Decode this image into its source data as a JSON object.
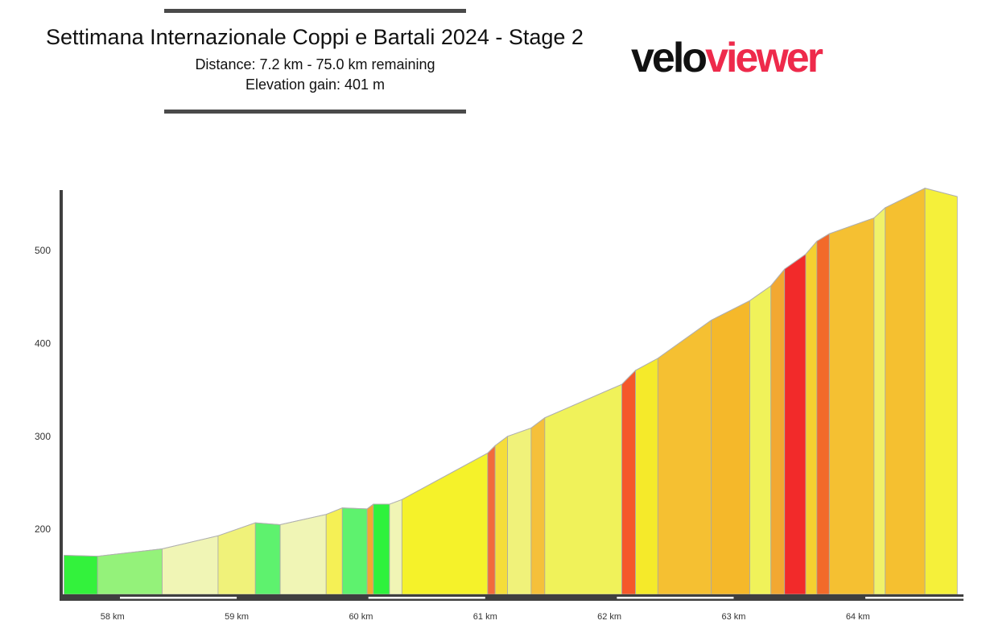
{
  "header": {
    "title": "Settimana Internazionale Coppi e Bartali 2024 - Stage 2",
    "distance_line": "Distance: 7.2 km - 75.0 km remaining",
    "elevation_line": "Elevation gain: 401 m"
  },
  "logo": {
    "part1": "velo",
    "part2": "viewer"
  },
  "chart_data": {
    "type": "area",
    "title": "",
    "xlabel": "",
    "ylabel": "",
    "xlim": [
      57.6,
      64.85
    ],
    "ylim": [
      130,
      565
    ],
    "y_ticks": [
      200,
      300,
      400,
      500
    ],
    "x_ticks": [
      58,
      59,
      60,
      61,
      62,
      63,
      64
    ],
    "x_tick_labels": [
      "58 km",
      "59 km",
      "60 km",
      "61 km",
      "62 km",
      "63 km",
      "64 km"
    ],
    "grid": false,
    "profile": {
      "x": [
        57.61,
        57.88,
        58.4,
        58.85,
        59.15,
        59.35,
        59.72,
        59.85,
        60.05,
        60.1,
        60.23,
        60.33,
        61.02,
        61.08,
        61.18,
        61.37,
        61.48,
        62.1,
        62.21,
        62.39,
        62.82,
        63.13,
        63.3,
        63.41,
        63.58,
        63.67,
        63.77,
        64.13,
        64.22,
        64.54,
        64.8
      ],
      "y": [
        172,
        171,
        179,
        193,
        207,
        205,
        216,
        223,
        222,
        227,
        227,
        232,
        282,
        290,
        300,
        309,
        320,
        356,
        371,
        384,
        425,
        446,
        462,
        480,
        496,
        510,
        518,
        535,
        546,
        567,
        558
      ]
    },
    "segment_colors": [
      "#33f23c",
      "#94f27a",
      "#f0f5b5",
      "#f0f27a",
      "#5ef26e",
      "#f0f5b5",
      "#f5f055",
      "#5ef26e",
      "#f2a832",
      "#2ef23c",
      "#f0f5b5",
      "#f5f22a",
      "#f26a3c",
      "#f5dd3a",
      "#f0f27a",
      "#f5c03a",
      "#f0f25a",
      "#f5582a",
      "#f5ea2a",
      "#f5c032",
      "#f5b82a",
      "#f0f25a",
      "#f2a832",
      "#f22a2a",
      "#f5d030",
      "#f26a2a",
      "#f5c032",
      "#f0f26a",
      "#f5c030",
      "#f5f03a",
      "#9af5ee"
    ]
  }
}
